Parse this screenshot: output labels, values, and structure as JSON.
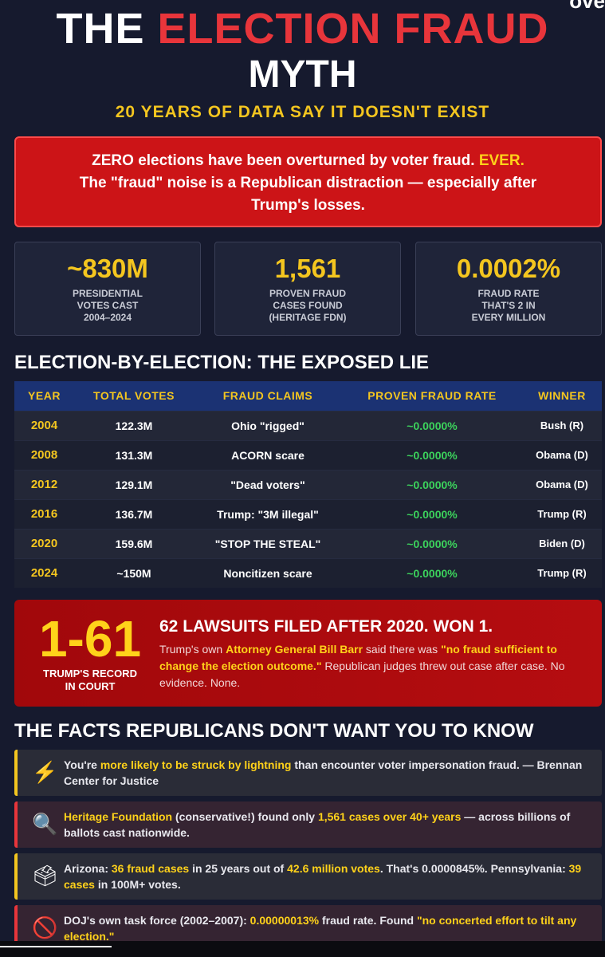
{
  "header": {
    "title_white": "THE ",
    "title_red": "ELECTION FRAUD",
    "title_line2": "MYTH",
    "subtitle": "20 YEARS OF DATA SAY IT DOESN'T EXIST",
    "corner_fragment": "ove"
  },
  "banner": {
    "line1_a": "ZERO elections have been overturned by voter fraud. ",
    "line1_b": "EVER.",
    "line2": "The \"fraud\" noise is a Republican distraction — especially after",
    "line3": "Trump's losses."
  },
  "stats": [
    {
      "value": "~830M",
      "label1": "PRESIDENTIAL",
      "label2": "VOTES CAST",
      "label3": "2004–2024"
    },
    {
      "value": "1,561",
      "label1": "PROVEN FRAUD",
      "label2": "CASES FOUND",
      "label3": "(HERITAGE FDN)"
    },
    {
      "value": "0.0002%",
      "label1": "FRAUD RATE",
      "label2": "THAT'S 2 IN",
      "label3": "EVERY MILLION"
    }
  ],
  "table": {
    "title": "ELECTION-BY-ELECTION: THE EXPOSED LIE",
    "headers": [
      "YEAR",
      "TOTAL VOTES",
      "FRAUD CLAIMS",
      "PROVEN FRAUD RATE",
      "WINNER"
    ],
    "rows": [
      {
        "year": "2004",
        "votes": "122.3M",
        "claim": "Ohio \"rigged\"",
        "rate": "~0.0000%",
        "winner": "Bush (R)"
      },
      {
        "year": "2008",
        "votes": "131.3M",
        "claim": "ACORN scare",
        "rate": "~0.0000%",
        "winner": "Obama (D)"
      },
      {
        "year": "2012",
        "votes": "129.1M",
        "claim": "\"Dead voters\"",
        "rate": "~0.0000%",
        "winner": "Obama (D)"
      },
      {
        "year": "2016",
        "votes": "136.7M",
        "claim": "Trump: \"3M illegal\"",
        "rate": "~0.0000%",
        "winner": "Trump (R)"
      },
      {
        "year": "2020",
        "votes": "159.6M",
        "claim": "\"STOP THE STEAL\"",
        "rate": "~0.0000%",
        "winner": "Biden (D)"
      },
      {
        "year": "2024",
        "votes": "~150M",
        "claim": "Noncitizen scare",
        "rate": "~0.0000%",
        "winner": "Trump (R)"
      }
    ]
  },
  "court": {
    "big": "1-61",
    "label1": "TRUMP'S RECORD",
    "label2": "IN COURT",
    "heading": "62 LAWSUITS FILED AFTER 2020. WON 1.",
    "text_a": "Trump's own ",
    "text_b": "Attorney General Bill Barr",
    "text_c": " said there was ",
    "text_d": "\"no fraud sufficient to change the election outcome.\"",
    "text_e": " Republican judges threw out case after case. No evidence. None."
  },
  "facts": {
    "title": "THE FACTS REPUBLICANS DON'T WANT YOU TO KNOW",
    "items": [
      {
        "icon": "⚡",
        "a": "You're ",
        "b": "more likely to be struck by lightning",
        "c": " than encounter voter impersonation fraud. — Brennan Center for Justice"
      },
      {
        "icon": "🔍",
        "a": "",
        "b": "Heritage Foundation",
        "c": " (conservative!) found only ",
        "d": "1,561 cases over 40+ years",
        "e": " — across billions of ballots cast nationwide."
      },
      {
        "icon": "🗳",
        "a": "Arizona: ",
        "b": "36 fraud cases",
        "c": " in 25 years out of ",
        "d": "42.6 million votes",
        "e": ". That's 0.0000845%. Pennsylvania: ",
        "f": "39 cases",
        "g": " in 100M+ votes."
      },
      {
        "icon": "🚫",
        "a": "DOJ's own task force (2002–2007): ",
        "b": "0.00000013%",
        "c": " fraud rate. Found ",
        "d": "\"no concerted effort to tilt any election.\""
      }
    ]
  },
  "colors": {
    "background": "#161a2e",
    "accent_red": "#e8353b",
    "accent_yellow": "#f4c61f",
    "green": "#3cd35c",
    "table_header": "#1b3273"
  }
}
